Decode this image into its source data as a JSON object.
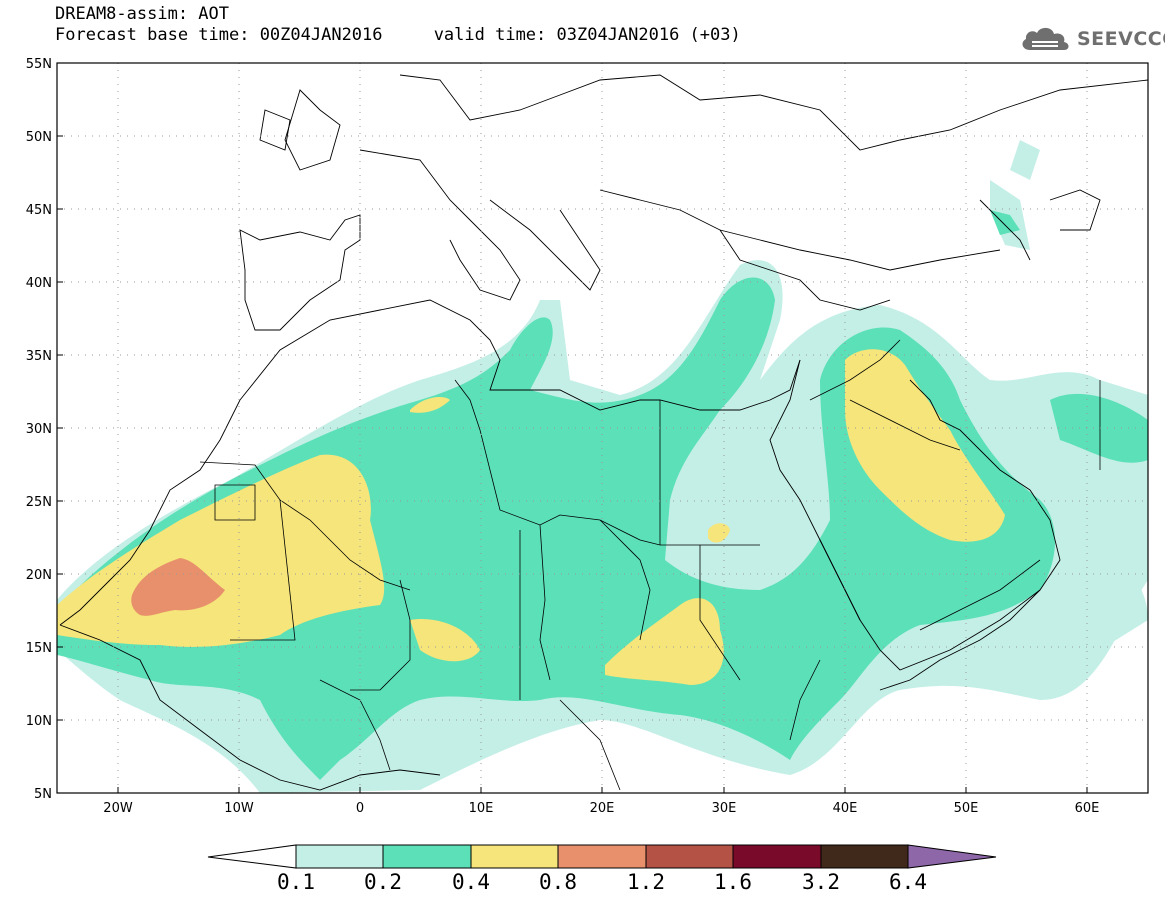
{
  "header": {
    "line1": "DREAM8-assim: AOT",
    "line2": "Forecast base time: 00Z04JAN2016     valid time: 03Z04JAN2016 (+03)"
  },
  "logo": {
    "text": "SEEVCCC",
    "icon": "cloud-icon"
  },
  "map": {
    "lat_range": [
      5,
      55
    ],
    "lon_range": [
      -25,
      65
    ],
    "lat_ticks": [
      "5N",
      "10N",
      "15N",
      "20N",
      "25N",
      "30N",
      "35N",
      "40N",
      "45N",
      "50N",
      "55N"
    ],
    "lon_ticks": [
      "20W",
      "10W",
      "0",
      "10E",
      "20E",
      "30E",
      "40E",
      "50E",
      "60E"
    ],
    "grid": "dotted",
    "variable": "AOT"
  },
  "colorbar": {
    "labels": [
      "0.1",
      "0.2",
      "0.4",
      "0.8",
      "1.2",
      "1.6",
      "3.2",
      "6.4"
    ],
    "colors": [
      "#c4efe6",
      "#5ce0b8",
      "#f5e57a",
      "#e8906b",
      "#b45246",
      "#7a0a2a",
      "#40281a",
      "#8e67a8"
    ],
    "low_extension_color": "#ffffff"
  }
}
